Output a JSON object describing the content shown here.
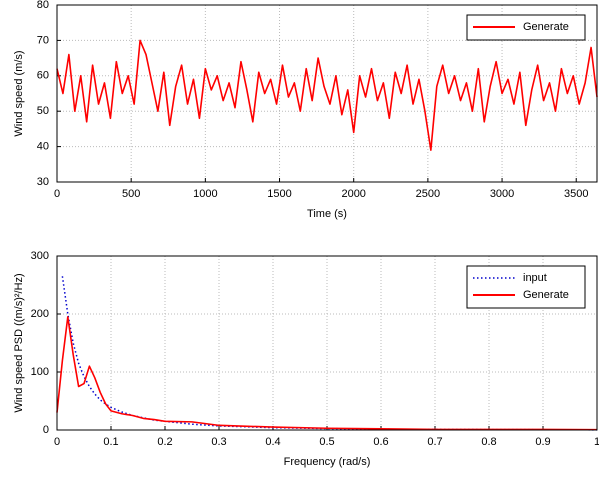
{
  "chart_data": [
    {
      "type": "line",
      "xlabel": "Time (s)",
      "ylabel": "Wind speed (m/s)",
      "xlim": [
        0,
        3640
      ],
      "ylim": [
        30,
        80
      ],
      "xticks": [
        0,
        500,
        1000,
        1500,
        2000,
        2500,
        3000,
        3500
      ],
      "yticks": [
        30,
        40,
        50,
        60,
        70,
        80
      ],
      "grid": true,
      "legend": "upper right",
      "x": [
        0,
        40,
        80,
        120,
        160,
        200,
        240,
        280,
        320,
        360,
        400,
        440,
        480,
        520,
        560,
        600,
        640,
        680,
        720,
        760,
        800,
        840,
        880,
        920,
        960,
        1000,
        1040,
        1080,
        1120,
        1160,
        1200,
        1240,
        1280,
        1320,
        1360,
        1400,
        1440,
        1480,
        1520,
        1560,
        1600,
        1640,
        1680,
        1720,
        1760,
        1800,
        1840,
        1880,
        1920,
        1960,
        2000,
        2040,
        2080,
        2120,
        2160,
        2200,
        2240,
        2280,
        2320,
        2360,
        2400,
        2440,
        2480,
        2520,
        2560,
        2600,
        2640,
        2680,
        2720,
        2760,
        2800,
        2840,
        2880,
        2920,
        2960,
        3000,
        3040,
        3080,
        3120,
        3160,
        3200,
        3240,
        3280,
        3320,
        3360,
        3400,
        3440,
        3480,
        3520,
        3560,
        3600,
        3640
      ],
      "series": [
        {
          "name": "Generate",
          "color": "#ff0000",
          "style": "solid",
          "values": [
            62,
            55,
            66,
            50,
            60,
            47,
            63,
            52,
            58,
            48,
            64,
            55,
            60,
            52,
            70,
            66,
            58,
            50,
            61,
            46,
            57,
            63,
            52,
            59,
            48,
            62,
            56,
            60,
            53,
            58,
            51,
            64,
            56,
            47,
            61,
            55,
            59,
            52,
            63,
            54,
            58,
            50,
            62,
            53,
            65,
            57,
            52,
            60,
            49,
            56,
            44,
            60,
            54,
            62,
            53,
            58,
            48,
            61,
            55,
            63,
            52,
            59,
            50,
            39,
            57,
            63,
            55,
            60,
            53,
            58,
            50,
            62,
            47,
            57,
            64,
            55,
            59,
            52,
            61,
            46,
            56,
            63,
            53,
            58,
            50,
            62,
            55,
            60,
            52,
            58,
            68,
            54
          ]
        }
      ]
    },
    {
      "type": "line",
      "xlabel": "Frequency (rad/s)",
      "ylabel": "Wind speed PSD ((m/s)²/Hz)",
      "xlim": [
        0,
        1
      ],
      "ylim": [
        0,
        300
      ],
      "xticks": [
        0,
        0.1,
        0.2,
        0.3,
        0.4,
        0.5,
        0.6,
        0.7,
        0.8,
        0.9,
        1
      ],
      "yticks": [
        0,
        100,
        200,
        300
      ],
      "grid": true,
      "legend": "upper right",
      "x": [
        0,
        0.01,
        0.02,
        0.03,
        0.04,
        0.05,
        0.06,
        0.07,
        0.08,
        0.09,
        0.1,
        0.12,
        0.14,
        0.16,
        0.18,
        0.2,
        0.25,
        0.3,
        0.4,
        0.5,
        0.6,
        0.7,
        0.8,
        0.9,
        1
      ],
      "series": [
        {
          "name": "input",
          "color": "#0000cc",
          "style": "dotted",
          "values": [
            null,
            265,
            200,
            150,
            115,
            92,
            75,
            62,
            52,
            45,
            39,
            31,
            25,
            21,
            17,
            15,
            10,
            7,
            4,
            2.5,
            1.5,
            1,
            0.7,
            0.5,
            0.3
          ]
        },
        {
          "name": "Generate",
          "color": "#ff0000",
          "style": "solid",
          "values": [
            30,
            120,
            195,
            130,
            75,
            80,
            110,
            90,
            65,
            45,
            33,
            28,
            25,
            20,
            18,
            15,
            14,
            8,
            5,
            3,
            2,
            1,
            1,
            1,
            0.5
          ]
        }
      ]
    }
  ]
}
